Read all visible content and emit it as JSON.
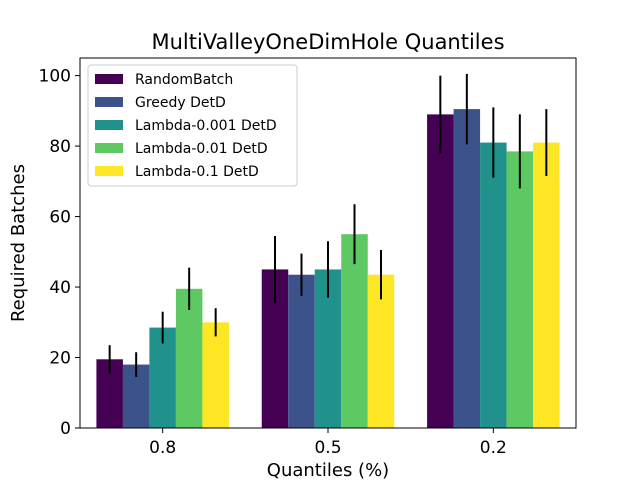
{
  "chart_data": {
    "type": "bar",
    "title": "MultiValleyOneDimHole Quantiles",
    "xlabel": "Quantiles (%)",
    "ylabel": "Required Batches",
    "categories": [
      "0.8",
      "0.5",
      "0.2"
    ],
    "ylim": [
      0,
      105
    ],
    "yticks": [
      0,
      20,
      40,
      60,
      80,
      100
    ],
    "grid": false,
    "legend_position": "top-left",
    "series": [
      {
        "name": "RandomBatch",
        "color": "#440154",
        "values": [
          19.5,
          45,
          89
        ],
        "errors": [
          4,
          9.5,
          11
        ]
      },
      {
        "name": "Greedy DetD",
        "color": "#3b528b",
        "values": [
          18,
          43.5,
          90.5
        ],
        "errors": [
          3.5,
          6,
          10
        ]
      },
      {
        "name": "Lambda-0.001 DetD",
        "color": "#21918c",
        "values": [
          28.5,
          45,
          81
        ],
        "errors": [
          4.5,
          8,
          10
        ]
      },
      {
        "name": "Lambda-0.01 DetD",
        "color": "#5ec962",
        "values": [
          39.5,
          55,
          78.5
        ],
        "errors": [
          6,
          8.5,
          10.5
        ]
      },
      {
        "name": "Lambda-0.1 DetD",
        "color": "#fde725",
        "values": [
          30,
          43.5,
          81
        ],
        "errors": [
          4,
          7,
          9.5
        ]
      }
    ]
  }
}
